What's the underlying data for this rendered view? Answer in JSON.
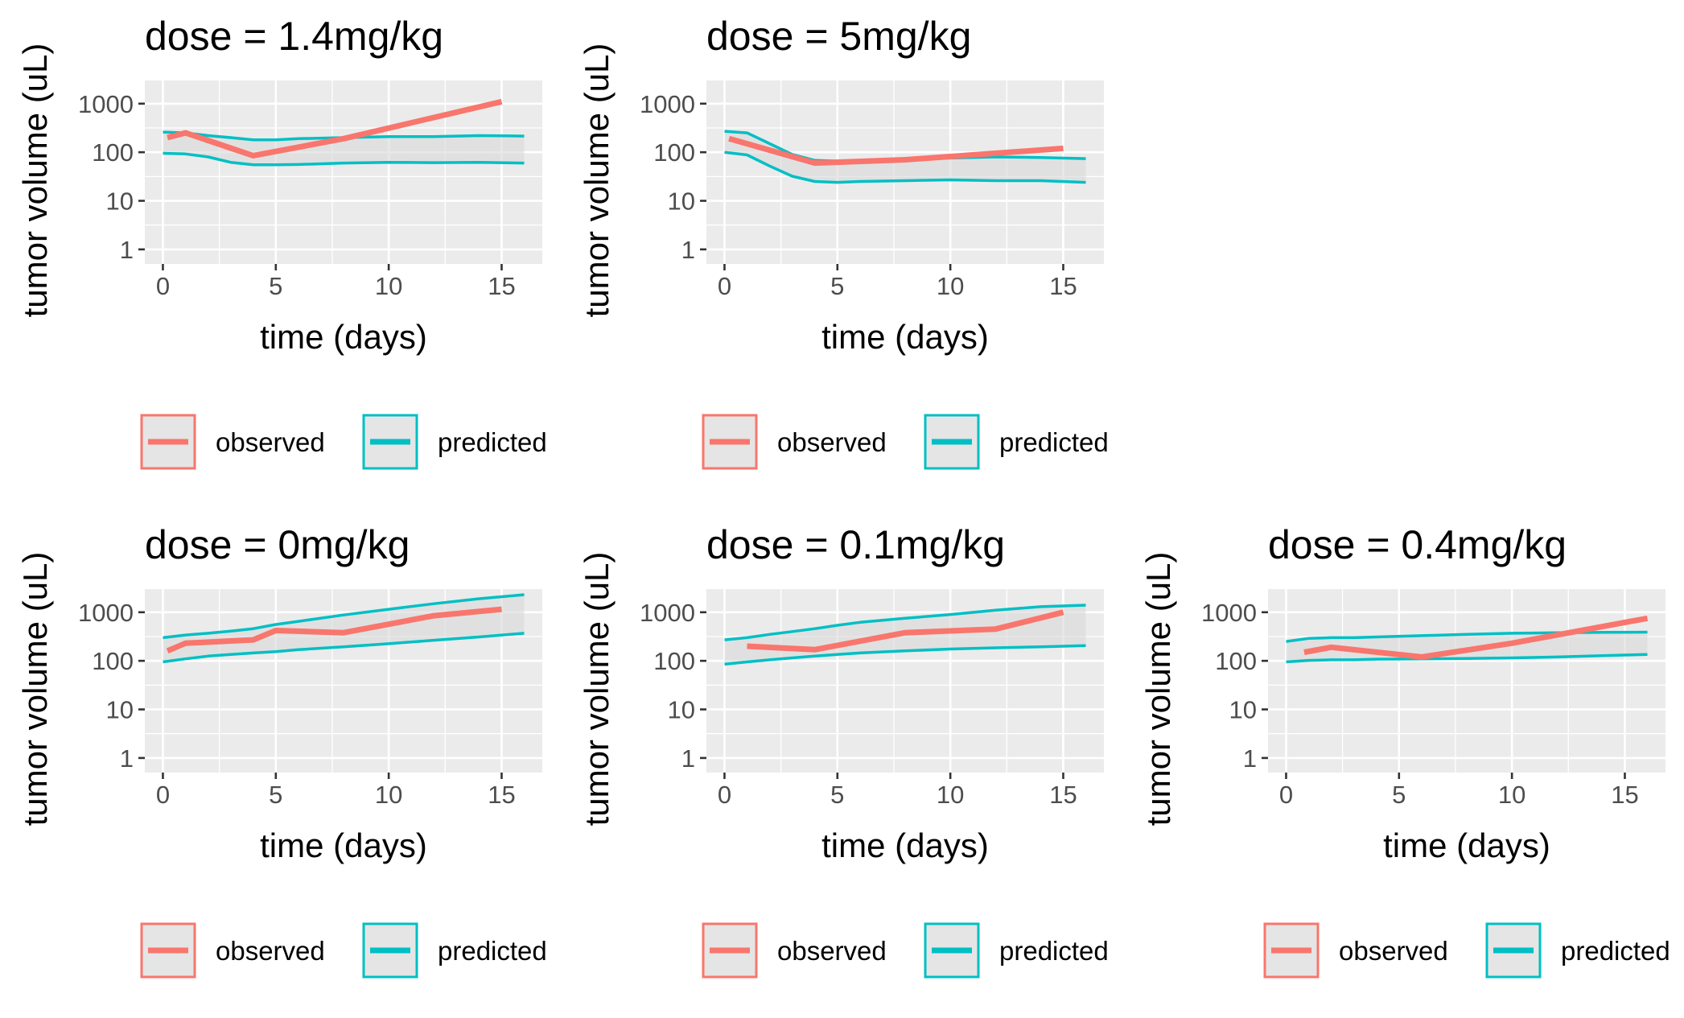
{
  "chart_data": [
    {
      "type": "line",
      "title": "dose = 1.4mg/kg",
      "xlabel": "time (days)",
      "ylabel": "tumor volume (uL)",
      "xlim": [
        -0.8,
        16.8
      ],
      "ylim": [
        1,
        3000
      ],
      "log_y": true,
      "grid": true,
      "legend_position": "bottom",
      "x_ticks": [
        0,
        5,
        10,
        15
      ],
      "y_ticks": [
        1,
        10,
        100,
        1000
      ],
      "x_tick_labels": [
        "0",
        "5",
        "10",
        "15"
      ],
      "y_tick_labels": [
        "1",
        "10",
        "100",
        "1000"
      ],
      "series": [
        {
          "name": "observed",
          "x": [
            0.2,
            1,
            4,
            8,
            15
          ],
          "y": [
            200,
            250,
            85,
            190,
            1100
          ]
        },
        {
          "name": "predicted",
          "bands": [
            {
              "x": [
                0,
                1,
                2,
                3,
                4,
                5,
                6,
                8,
                10,
                12,
                14,
                16
              ],
              "y": [
                260,
                250,
                220,
                200,
                180,
                180,
                190,
                200,
                210,
                210,
                220,
                215
              ]
            },
            {
              "x": [
                0,
                1,
                2,
                3,
                4,
                5,
                6,
                8,
                10,
                12,
                14,
                16
              ],
              "y": [
                95,
                92,
                80,
                62,
                55,
                55,
                56,
                60,
                62,
                61,
                62,
                60
              ]
            }
          ]
        }
      ]
    },
    {
      "type": "line",
      "title": "dose = 5mg/kg",
      "xlabel": "time (days)",
      "ylabel": "tumor volume (uL)",
      "xlim": [
        -0.8,
        16.8
      ],
      "ylim": [
        1,
        3000
      ],
      "log_y": true,
      "grid": true,
      "legend_position": "bottom",
      "x_ticks": [
        0,
        5,
        10,
        15
      ],
      "y_ticks": [
        1,
        10,
        100,
        1000
      ],
      "x_tick_labels": [
        "0",
        "5",
        "10",
        "15"
      ],
      "y_tick_labels": [
        "1",
        "10",
        "100",
        "1000"
      ],
      "series": [
        {
          "name": "observed",
          "x": [
            0.2,
            4,
            8,
            15
          ],
          "y": [
            190,
            60,
            70,
            120
          ]
        },
        {
          "name": "predicted",
          "bands": [
            {
              "x": [
                0,
                1,
                2,
                3,
                4,
                5,
                6,
                8,
                10,
                12,
                14,
                16
              ],
              "y": [
                270,
                250,
                150,
                90,
                68,
                66,
                68,
                72,
                76,
                80,
                78,
                74
              ]
            },
            {
              "x": [
                0,
                1,
                2,
                3,
                4,
                5,
                6,
                8,
                10,
                12,
                14,
                16
              ],
              "y": [
                100,
                88,
                52,
                32,
                25,
                24,
                25,
                26,
                27,
                26,
                26,
                24
              ]
            }
          ]
        }
      ]
    },
    {
      "type": "line",
      "title": "dose = 0mg/kg",
      "xlabel": "time (days)",
      "ylabel": "tumor volume (uL)",
      "xlim": [
        -0.8,
        16.8
      ],
      "ylim": [
        1,
        3000
      ],
      "log_y": true,
      "grid": true,
      "legend_position": "bottom",
      "x_ticks": [
        0,
        5,
        10,
        15
      ],
      "y_ticks": [
        1,
        10,
        100,
        1000
      ],
      "x_tick_labels": [
        "0",
        "5",
        "10",
        "15"
      ],
      "y_tick_labels": [
        "1",
        "10",
        "100",
        "1000"
      ],
      "series": [
        {
          "name": "observed",
          "x": [
            0.2,
            1,
            4,
            5,
            8,
            12,
            15
          ],
          "y": [
            160,
            230,
            270,
            420,
            380,
            850,
            1150
          ]
        },
        {
          "name": "predicted",
          "bands": [
            {
              "x": [
                0,
                1,
                2,
                3,
                4,
                5,
                6,
                8,
                10,
                12,
                14,
                16
              ],
              "y": [
                300,
                340,
                370,
                410,
                460,
                560,
                650,
                880,
                1150,
                1500,
                1900,
                2300
              ]
            },
            {
              "x": [
                0,
                1,
                2,
                3,
                4,
                5,
                6,
                8,
                10,
                12,
                14,
                16
              ],
              "y": [
                95,
                110,
                125,
                135,
                145,
                155,
                170,
                195,
                225,
                265,
                310,
                370
              ]
            }
          ]
        }
      ]
    },
    {
      "type": "line",
      "title": "dose = 0.1mg/kg",
      "xlabel": "time (days)",
      "ylabel": "tumor volume (uL)",
      "xlim": [
        -0.8,
        16.8
      ],
      "ylim": [
        1,
        3000
      ],
      "log_y": true,
      "grid": true,
      "legend_position": "bottom",
      "x_ticks": [
        0,
        5,
        10,
        15
      ],
      "y_ticks": [
        1,
        10,
        100,
        1000
      ],
      "x_tick_labels": [
        "0",
        "5",
        "10",
        "15"
      ],
      "y_tick_labels": [
        "1",
        "10",
        "100",
        "1000"
      ],
      "series": [
        {
          "name": "observed",
          "x": [
            1,
            4,
            8,
            12,
            15
          ],
          "y": [
            200,
            170,
            380,
            450,
            1000
          ]
        },
        {
          "name": "predicted",
          "bands": [
            {
              "x": [
                0,
                1,
                2,
                3,
                4,
                5,
                6,
                8,
                10,
                12,
                14,
                16
              ],
              "y": [
                270,
                300,
                350,
                400,
                460,
                540,
                620,
                750,
                900,
                1100,
                1300,
                1400
              ]
            },
            {
              "x": [
                0,
                1,
                2,
                3,
                4,
                5,
                6,
                8,
                10,
                12,
                14,
                16
              ],
              "y": [
                85,
                95,
                105,
                115,
                125,
                135,
                145,
                160,
                175,
                185,
                195,
                205
              ]
            }
          ]
        }
      ]
    },
    {
      "type": "line",
      "title": "dose = 0.4mg/kg",
      "xlabel": "time (days)",
      "ylabel": "tumor volume (uL)",
      "xlim": [
        -0.8,
        16.8
      ],
      "ylim": [
        1,
        3000
      ],
      "log_y": true,
      "grid": true,
      "legend_position": "bottom",
      "x_ticks": [
        0,
        5,
        10,
        15
      ],
      "y_ticks": [
        1,
        10,
        100,
        1000
      ],
      "x_tick_labels": [
        "0",
        "5",
        "10",
        "15"
      ],
      "y_tick_labels": [
        "1",
        "10",
        "100",
        "1000"
      ],
      "series": [
        {
          "name": "observed",
          "x": [
            0.8,
            2,
            6,
            10,
            16
          ],
          "y": [
            150,
            190,
            120,
            230,
            750
          ]
        },
        {
          "name": "predicted",
          "bands": [
            {
              "x": [
                0,
                1,
                2,
                3,
                4,
                6,
                8,
                10,
                12,
                14,
                16
              ],
              "y": [
                250,
                290,
                300,
                300,
                310,
                330,
                350,
                370,
                380,
                385,
                390
              ]
            },
            {
              "x": [
                0,
                1,
                2,
                3,
                4,
                6,
                8,
                10,
                12,
                14,
                16
              ],
              "y": [
                95,
                102,
                105,
                105,
                108,
                110,
                112,
                115,
                120,
                128,
                135
              ]
            }
          ]
        }
      ]
    }
  ],
  "colors": {
    "observed": "#F8766D",
    "predicted": "#00BFC4",
    "panel_background": "#EBEBEB",
    "band_fill": "#D9D9D9"
  }
}
